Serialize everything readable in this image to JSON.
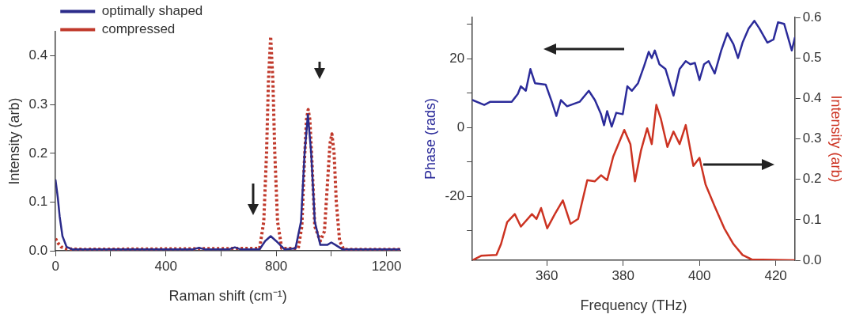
{
  "chart_data": [
    {
      "type": "line",
      "xlabel": "Raman shift (cm⁻¹)",
      "ylabel": "Intensity (arb)",
      "xlim": [
        0,
        1250
      ],
      "xticks": [
        0,
        {
          "value": 200,
          "label": null
        },
        400,
        {
          "value": 600,
          "label": null
        },
        800,
        {
          "value": 1000,
          "label": null
        },
        1200
      ],
      "ylim": [
        0,
        0.45
      ],
      "yticks": [
        {
          "value": 0,
          "label": "0.0"
        },
        {
          "value": 0.1,
          "label": "0.1"
        },
        {
          "value": 0.2,
          "label": "0.2"
        },
        {
          "value": 0.3,
          "label": "0.3"
        },
        {
          "value": 0.4,
          "label": "0.4"
        }
      ],
      "legend": "top left",
      "grid": false,
      "marker": "none",
      "series": [
        {
          "name": "optimally shaped",
          "color": "#2b2b8a",
          "line_style": "solid",
          "x": [
            0,
            8,
            15,
            25,
            40,
            60,
            500,
            520,
            540,
            630,
            650,
            670,
            740,
            760,
            780,
            800,
            830,
            870,
            890,
            903,
            915,
            927,
            940,
            960,
            985,
            1000,
            1015,
            1040,
            1250
          ],
          "values": [
            0.145,
            0.11,
            0.07,
            0.03,
            0.008,
            0.003,
            0.003,
            0.006,
            0.003,
            0.003,
            0.007,
            0.003,
            0.003,
            0.02,
            0.03,
            0.02,
            0.003,
            0.005,
            0.06,
            0.2,
            0.28,
            0.2,
            0.06,
            0.012,
            0.012,
            0.017,
            0.012,
            0.003,
            0.003
          ]
        },
        {
          "name": "compressed",
          "color": "#c0392b",
          "line_style": "dotted",
          "x": [
            0,
            10,
            20,
            40,
            100,
            740,
            755,
            765,
            772,
            780,
            788,
            795,
            805,
            820,
            880,
            893,
            902,
            910,
            916,
            922,
            930,
            940,
            960,
            975,
            985,
            995,
            1002,
            1010,
            1018,
            1030,
            1045,
            1250
          ],
          "values": [
            0.025,
            0.015,
            0.008,
            0.004,
            0.003,
            0.005,
            0.06,
            0.2,
            0.35,
            0.44,
            0.35,
            0.2,
            0.06,
            0.005,
            0.005,
            0.05,
            0.18,
            0.27,
            0.29,
            0.27,
            0.18,
            0.05,
            0.02,
            0.04,
            0.13,
            0.22,
            0.24,
            0.2,
            0.1,
            0.02,
            0.003,
            0.003
          ]
        }
      ]
    },
    {
      "type": "line",
      "xlabel": "Frequency (THz)",
      "ylabel": "Phase (rads)",
      "y2label": "Intensity (arb)",
      "xlim": [
        340.5,
        425
      ],
      "xticks": [
        360,
        380,
        400,
        420
      ],
      "ylim": [
        -38.5,
        32
      ],
      "yticks": [
        {
          "value": -30,
          "label": null
        },
        -20,
        {
          "value": -10,
          "label": null
        },
        0,
        {
          "value": 10,
          "label": null
        },
        20,
        {
          "value": 30,
          "label": null
        }
      ],
      "y2lim": [
        0,
        0.6
      ],
      "y2ticks": [
        {
          "value": 0,
          "label": "0.0"
        },
        0.1,
        0.2,
        0.3,
        0.4,
        0.5,
        0.6
      ],
      "legend": false,
      "grid": false,
      "marker": "none",
      "series": [
        {
          "color": "#2b2b9a",
          "line_style": "solid",
          "x": [
            340.5,
            343.6,
            345.2,
            350.8,
            352.4,
            353.2,
            354.5,
            355.7,
            356.9,
            359.7,
            361.3,
            362.5,
            363.7,
            365.3,
            368.6,
            371.0,
            372.6,
            374.2,
            375.0,
            375.8,
            377.0,
            378.2,
            379.9,
            381.1,
            382.3,
            383.9,
            385.5,
            386.7,
            387.5,
            388.3,
            389.5,
            391.1,
            393.2,
            394.8,
            396.4,
            397.6,
            398.8,
            400.0,
            401.2,
            402.4,
            404.0,
            405.7,
            407.3,
            408.9,
            410.1,
            411.3,
            412.9,
            414.4,
            415.7,
            417.8,
            419.4,
            420.6,
            422.2,
            424.2,
            425.0
          ],
          "values": [
            8.0,
            6.6,
            7.5,
            7.5,
            9.8,
            12.0,
            10.7,
            17.0,
            12.9,
            12.5,
            7.5,
            3.4,
            8.0,
            6.2,
            7.5,
            10.7,
            8.0,
            3.9,
            0.7,
            4.8,
            0.3,
            4.3,
            3.9,
            12.0,
            10.7,
            12.9,
            17.9,
            22.0,
            20.2,
            22.4,
            18.4,
            17.0,
            9.3,
            17.0,
            19.3,
            18.4,
            18.8,
            13.8,
            18.4,
            19.3,
            15.7,
            22.4,
            27.4,
            24.2,
            20.2,
            24.7,
            28.8,
            31.0,
            28.8,
            24.7,
            25.6,
            30.6,
            30.1,
            22.4,
            26.1
          ]
        },
        {
          "color": "#cc3322",
          "line_style": "solid",
          "axis": "y2",
          "x": [
            340.5,
            342.8,
            346.8,
            348.0,
            349.6,
            351.6,
            353.2,
            356.1,
            357.3,
            358.5,
            360.1,
            362.1,
            364.2,
            366.2,
            368.2,
            370.6,
            372.6,
            374.2,
            375.8,
            377.4,
            380.3,
            381.9,
            383.1,
            384.7,
            386.3,
            387.5,
            388.7,
            389.9,
            391.6,
            393.2,
            394.8,
            396.4,
            398.4,
            400.0,
            401.6,
            404.0,
            406.5,
            408.9,
            411.3,
            413.7,
            425.0
          ],
          "values": [
            0.0,
            0.011,
            0.013,
            0.04,
            0.094,
            0.114,
            0.083,
            0.114,
            0.102,
            0.129,
            0.079,
            0.114,
            0.148,
            0.09,
            0.102,
            0.198,
            0.195,
            0.21,
            0.198,
            0.256,
            0.322,
            0.287,
            0.195,
            0.272,
            0.326,
            0.287,
            0.384,
            0.349,
            0.28,
            0.318,
            0.287,
            0.334,
            0.233,
            0.253,
            0.187,
            0.133,
            0.079,
            0.04,
            0.013,
            0.002,
            0.0
          ]
        }
      ]
    }
  ]
}
